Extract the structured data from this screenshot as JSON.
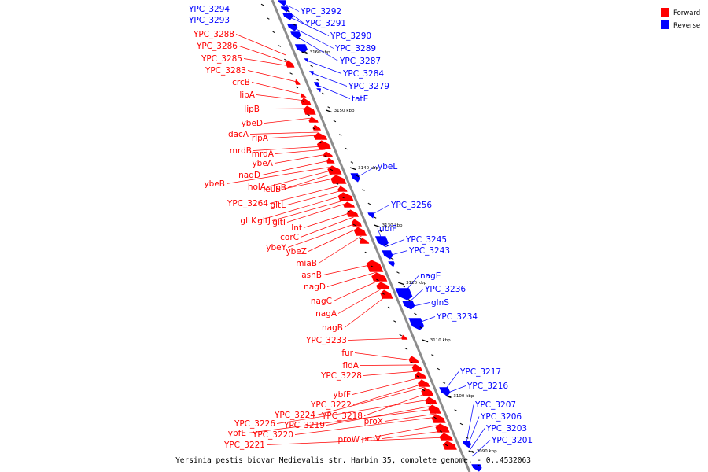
{
  "colors": {
    "forward": "#ff0000",
    "reverse": "#0000ff",
    "backbone": "#8c8c8c",
    "tick": "#000000"
  },
  "legend": [
    {
      "label": "Forward",
      "color": "#ff0000"
    },
    {
      "label": "Reverse",
      "color": "#0000ff"
    }
  ],
  "caption": "Yersinia pestis biovar Medievalis str. Harbin 35, complete genome. - 0..4532063",
  "ticks": [
    "3160 kbp",
    "3150 kbp",
    "3140 kbp",
    "3130 kbp",
    "3120 kbp",
    "3110 kbp",
    "3100 kbp",
    "3090 kbp"
  ],
  "reverse_labels": [
    "YPC_3294",
    "YPC_3293",
    "YPC_3292",
    "YPC_3291",
    "YPC_3290",
    "YPC_3289",
    "YPC_3287",
    "YPC_3284",
    "YPC_3279",
    "tatE",
    "ybeL",
    "YPC_3256",
    "ubiF",
    "YPC_3245",
    "YPC_3243",
    "nagE",
    "YPC_3236",
    "glnS",
    "YPC_3234",
    "YPC_3217",
    "YPC_3216",
    "YPC_3207",
    "YPC_3206",
    "YPC_3203",
    "YPC_3201"
  ],
  "forward_labels": [
    "YPC_3288",
    "YPC_3286",
    "YPC_3285",
    "YPC_3283",
    "crcB",
    "lipA",
    "lipB",
    "ybeD",
    "dacA",
    "rlpA",
    "mrdB",
    "mrdA",
    "ybeA",
    "nadD",
    "ybeB",
    "holA",
    "rlpB",
    "leuS",
    "YPC_3264",
    "gltL",
    "gltK",
    "gltJ",
    "gltI",
    "lnt",
    "corC",
    "ybeY",
    "ybeZ",
    "miaB",
    "asnB",
    "nagD",
    "nagC",
    "nagA",
    "nagB",
    "YPC_3233",
    "fur",
    "fldA",
    "YPC_3228",
    "ybfF",
    "YPC_3222",
    "YPC_3224",
    "YPC_3218",
    "YPC_3226",
    "YPC_3219",
    "proX",
    "ybfE",
    "YPC_3220",
    "proW",
    "proV",
    "YPC_3221"
  ]
}
